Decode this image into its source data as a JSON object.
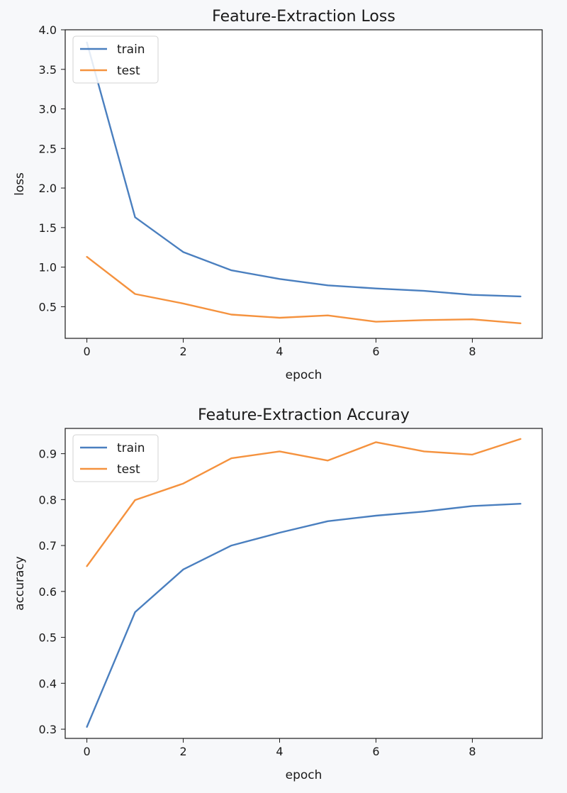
{
  "chart_data": [
    {
      "type": "line",
      "title": "Feature-Extraction Loss",
      "xlabel": "epoch",
      "ylabel": "loss",
      "xlim": [
        -0.45,
        9.45
      ],
      "ylim": [
        0.1,
        4.0
      ],
      "xticks": [
        0,
        2,
        4,
        6,
        8
      ],
      "xtick_labels": [
        "0",
        "2",
        "4",
        "6",
        "8"
      ],
      "yticks": [
        0.5,
        1.0,
        1.5,
        2.0,
        2.5,
        3.0,
        3.5,
        4.0
      ],
      "ytick_labels": [
        "0.5",
        "1.0",
        "1.5",
        "2.0",
        "2.5",
        "3.0",
        "3.5",
        "4.0"
      ],
      "x": [
        0,
        1,
        2,
        3,
        4,
        5,
        6,
        7,
        8,
        9
      ],
      "series": [
        {
          "name": "train",
          "color": "#4a7fbf",
          "values": [
            3.84,
            1.63,
            1.19,
            0.96,
            0.85,
            0.77,
            0.73,
            0.7,
            0.65,
            0.63
          ]
        },
        {
          "name": "test",
          "color": "#f5923e",
          "values": [
            1.13,
            0.66,
            0.54,
            0.4,
            0.36,
            0.39,
            0.31,
            0.33,
            0.34,
            0.29
          ]
        }
      ],
      "legend": "top-left",
      "grid": false
    },
    {
      "type": "line",
      "title": "Feature-Extraction Accuray",
      "xlabel": "epoch",
      "ylabel": "accuracy",
      "xlim": [
        -0.45,
        9.45
      ],
      "ylim": [
        0.28,
        0.955
      ],
      "xticks": [
        0,
        2,
        4,
        6,
        8
      ],
      "xtick_labels": [
        "0",
        "2",
        "4",
        "6",
        "8"
      ],
      "yticks": [
        0.3,
        0.4,
        0.5,
        0.6,
        0.7,
        0.8,
        0.9
      ],
      "ytick_labels": [
        "0.3",
        "0.4",
        "0.5",
        "0.6",
        "0.7",
        "0.8",
        "0.9"
      ],
      "x": [
        0,
        1,
        2,
        3,
        4,
        5,
        6,
        7,
        8,
        9
      ],
      "series": [
        {
          "name": "train",
          "color": "#4a7fbf",
          "values": [
            0.305,
            0.555,
            0.648,
            0.7,
            0.728,
            0.753,
            0.765,
            0.774,
            0.786,
            0.791
          ]
        },
        {
          "name": "test",
          "color": "#f5923e",
          "values": [
            0.655,
            0.799,
            0.835,
            0.89,
            0.905,
            0.885,
            0.925,
            0.905,
            0.898,
            0.932
          ]
        }
      ],
      "legend": "top-left",
      "grid": false
    }
  ]
}
